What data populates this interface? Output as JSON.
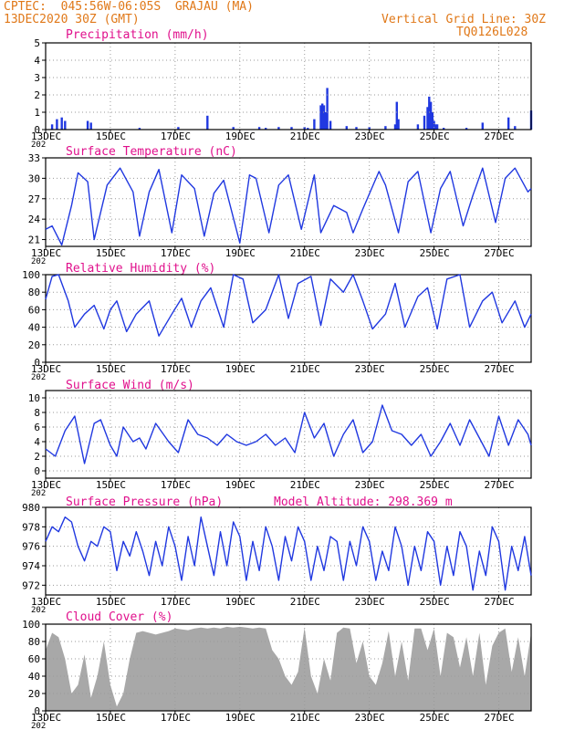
{
  "header": {
    "line1": "CPTEC:  045:56W-06:05S  GRAJAU (MA)",
    "line2": "13DEC2020 30Z (GMT)",
    "grid_note": "Vertical Grid Line: 30Z",
    "code": "TQ0126L028"
  },
  "colors": {
    "header": "#e07818",
    "title": "#e0108c",
    "series": "#2038e0",
    "cloud": "#a8a8a8"
  },
  "x_axis": {
    "labels": [
      "13DEC",
      "15DEC",
      "17DEC",
      "19DEC",
      "21DEC",
      "23DEC",
      "25DEC",
      "27DEC"
    ],
    "year_label": "202",
    "day_range": [
      13,
      28
    ]
  },
  "panels": {
    "precip": {
      "title": "Precipitation (mm/h)"
    },
    "temp": {
      "title": "Surface Temperature (nC)"
    },
    "rh": {
      "title": "Relative Humidity (%)"
    },
    "wind": {
      "title": "Surface Wind (m/s)"
    },
    "pres": {
      "title": "Surface Pressure (hPa)",
      "extra": "Model Altitude: 298.369 m"
    },
    "cloud": {
      "title": "Cloud Cover (%)"
    }
  },
  "chart_data": [
    {
      "id": "precip",
      "type": "bar",
      "title": "Precipitation (mm/h)",
      "ylim": [
        0,
        5
      ],
      "yticks": [
        0,
        1,
        2,
        3,
        4,
        5
      ],
      "grid": true,
      "x": [
        13.2,
        13.35,
        13.5,
        13.6,
        14.3,
        14.4,
        15.9,
        17.1,
        18.0,
        18.8,
        19.6,
        19.8,
        20.2,
        20.6,
        21.0,
        21.1,
        21.3,
        21.5,
        21.55,
        21.6,
        21.65,
        21.7,
        21.8,
        22.3,
        22.6,
        23.0,
        23.5,
        23.8,
        23.85,
        23.9,
        24.5,
        24.7,
        24.8,
        24.85,
        24.9,
        24.95,
        25.0,
        25.05,
        25.1,
        25.3,
        26.0,
        26.5,
        27.3,
        27.5,
        28.0
      ],
      "values": [
        0.3,
        0.6,
        0.7,
        0.5,
        0.5,
        0.4,
        0.1,
        0.15,
        0.8,
        0.15,
        0.15,
        0.1,
        0.15,
        0.15,
        0.15,
        0.1,
        0.6,
        1.4,
        1.5,
        1.4,
        1.0,
        2.4,
        0.5,
        0.2,
        0.15,
        0.15,
        0.2,
        0.3,
        1.6,
        0.6,
        0.3,
        0.8,
        1.3,
        1.9,
        1.6,
        1.0,
        0.5,
        0.3,
        0.3,
        0.1,
        0.1,
        0.4,
        0.7,
        0.2,
        1.1
      ]
    },
    {
      "id": "temp",
      "type": "line",
      "title": "Surface Temperature (nC)",
      "ylim": [
        20,
        33
      ],
      "yticks": [
        21,
        24,
        27,
        30,
        33
      ],
      "grid": true,
      "x": [
        13.0,
        13.2,
        13.5,
        13.8,
        14.0,
        14.3,
        14.5,
        14.9,
        15.3,
        15.7,
        15.9,
        16.2,
        16.5,
        16.9,
        17.2,
        17.6,
        17.9,
        18.2,
        18.5,
        19.0,
        19.3,
        19.5,
        19.9,
        20.2,
        20.5,
        20.9,
        21.3,
        21.5,
        21.9,
        22.3,
        22.5,
        22.8,
        23.3,
        23.5,
        23.9,
        24.2,
        24.5,
        24.9,
        25.2,
        25.5,
        25.9,
        26.2,
        26.5,
        26.9,
        27.2,
        27.5,
        27.9,
        28.0
      ],
      "values": [
        22.5,
        23.0,
        20.2,
        26.0,
        30.8,
        29.5,
        21.0,
        29.0,
        31.5,
        28.0,
        21.5,
        28.0,
        31.3,
        22.0,
        30.5,
        28.5,
        21.5,
        27.8,
        29.7,
        20.5,
        30.5,
        30.0,
        22.0,
        29.0,
        30.5,
        22.5,
        30.5,
        22.0,
        26.0,
        25.0,
        22.0,
        25.5,
        31.0,
        29.0,
        22.0,
        29.5,
        31.0,
        22.0,
        28.5,
        31.0,
        23.0,
        27.5,
        31.5,
        23.5,
        30.0,
        31.5,
        28.0,
        28.5
      ]
    },
    {
      "id": "rh",
      "type": "line",
      "title": "Relative Humidity (%)",
      "ylim": [
        0,
        100
      ],
      "yticks": [
        0,
        20,
        40,
        60,
        80,
        100
      ],
      "grid": true,
      "x": [
        13.0,
        13.2,
        13.4,
        13.7,
        13.9,
        14.2,
        14.5,
        14.8,
        15.0,
        15.2,
        15.5,
        15.8,
        16.2,
        16.5,
        16.9,
        17.2,
        17.5,
        17.8,
        18.1,
        18.5,
        18.8,
        19.1,
        19.4,
        19.8,
        20.2,
        20.5,
        20.8,
        21.2,
        21.5,
        21.8,
        22.2,
        22.5,
        22.8,
        23.1,
        23.5,
        23.8,
        24.1,
        24.5,
        24.8,
        25.1,
        25.4,
        25.8,
        26.1,
        26.5,
        26.8,
        27.1,
        27.5,
        27.8,
        28.0
      ],
      "values": [
        72,
        98,
        100,
        70,
        40,
        55,
        65,
        38,
        60,
        70,
        35,
        55,
        70,
        30,
        55,
        73,
        40,
        70,
        85,
        40,
        100,
        95,
        45,
        60,
        100,
        50,
        90,
        98,
        42,
        95,
        80,
        100,
        70,
        38,
        55,
        90,
        40,
        75,
        85,
        38,
        95,
        100,
        40,
        70,
        80,
        45,
        70,
        40,
        55
      ]
    },
    {
      "id": "wind",
      "type": "line",
      "title": "Surface Wind (m/s)",
      "ylim": [
        -1,
        11
      ],
      "yticks": [
        0,
        2,
        4,
        6,
        8,
        10
      ],
      "grid": true,
      "x": [
        13.0,
        13.3,
        13.6,
        13.9,
        14.2,
        14.5,
        14.7,
        15.0,
        15.2,
        15.4,
        15.7,
        15.9,
        16.1,
        16.4,
        16.8,
        17.1,
        17.4,
        17.7,
        18.0,
        18.3,
        18.6,
        18.9,
        19.2,
        19.5,
        19.8,
        20.1,
        20.4,
        20.7,
        21.0,
        21.3,
        21.6,
        21.9,
        22.2,
        22.5,
        22.8,
        23.1,
        23.4,
        23.7,
        24.0,
        24.3,
        24.6,
        24.9,
        25.2,
        25.5,
        25.8,
        26.1,
        26.4,
        26.7,
        27.0,
        27.3,
        27.6,
        27.9,
        28.0
      ],
      "values": [
        3.0,
        2.0,
        5.5,
        7.5,
        1.0,
        6.5,
        7.0,
        3.5,
        2.0,
        6.0,
        4.0,
        4.5,
        3.0,
        6.5,
        4.0,
        2.5,
        7.0,
        5.0,
        4.5,
        3.5,
        5.0,
        4.0,
        3.5,
        4.0,
        5.0,
        3.5,
        4.5,
        2.5,
        8.0,
        4.5,
        6.5,
        2.0,
        5.0,
        7.0,
        2.5,
        4.0,
        9.0,
        5.5,
        5.0,
        3.5,
        5.0,
        2.0,
        4.0,
        6.5,
        3.5,
        7.0,
        4.5,
        2.0,
        7.5,
        3.5,
        7.0,
        5.0,
        3.5
      ]
    },
    {
      "id": "pres",
      "type": "line",
      "title": "Surface Pressure (hPa)",
      "ylim": [
        971,
        980
      ],
      "yticks": [
        972,
        974,
        976,
        978,
        980
      ],
      "grid": true,
      "x": [
        13.0,
        13.2,
        13.4,
        13.6,
        13.8,
        14.0,
        14.2,
        14.4,
        14.6,
        14.8,
        15.0,
        15.2,
        15.4,
        15.6,
        15.8,
        16.0,
        16.2,
        16.4,
        16.6,
        16.8,
        17.0,
        17.2,
        17.4,
        17.6,
        17.8,
        18.0,
        18.2,
        18.4,
        18.6,
        18.8,
        19.0,
        19.2,
        19.4,
        19.6,
        19.8,
        20.0,
        20.2,
        20.4,
        20.6,
        20.8,
        21.0,
        21.2,
        21.4,
        21.6,
        21.8,
        22.0,
        22.2,
        22.4,
        22.6,
        22.8,
        23.0,
        23.2,
        23.4,
        23.6,
        23.8,
        24.0,
        24.2,
        24.4,
        24.6,
        24.8,
        25.0,
        25.2,
        25.4,
        25.6,
        25.8,
        26.0,
        26.2,
        26.4,
        26.6,
        26.8,
        27.0,
        27.2,
        27.4,
        27.6,
        27.8,
        28.0
      ],
      "values": [
        976.5,
        978.0,
        977.5,
        979.0,
        978.5,
        976.0,
        974.5,
        976.5,
        976.0,
        978.0,
        977.5,
        973.5,
        976.5,
        975.0,
        977.5,
        975.5,
        973.0,
        976.5,
        974.0,
        978.0,
        976.0,
        972.5,
        977.0,
        974.0,
        979.0,
        976.0,
        973.0,
        977.5,
        974.0,
        978.5,
        977.0,
        972.5,
        976.5,
        973.5,
        978.0,
        976.0,
        972.5,
        977.0,
        974.5,
        978.0,
        976.5,
        972.5,
        976.0,
        973.5,
        977.0,
        976.5,
        972.5,
        976.5,
        974.0,
        978.0,
        976.5,
        972.5,
        975.5,
        973.5,
        978.0,
        976.0,
        972.0,
        976.0,
        973.5,
        977.5,
        976.5,
        972.0,
        976.0,
        973.0,
        977.5,
        976.0,
        971.5,
        975.5,
        973.0,
        978.0,
        976.5,
        971.5,
        976.0,
        973.5,
        977.0,
        973.0
      ]
    },
    {
      "id": "cloud",
      "type": "area",
      "title": "Cloud Cover (%)",
      "ylim": [
        0,
        100
      ],
      "yticks": [
        0,
        20,
        40,
        60,
        80,
        100
      ],
      "grid": true,
      "x": [
        13.0,
        13.2,
        13.4,
        13.6,
        13.8,
        14.0,
        14.2,
        14.4,
        14.6,
        14.8,
        15.0,
        15.2,
        15.4,
        15.6,
        15.8,
        16.0,
        16.2,
        16.4,
        16.6,
        16.8,
        17.0,
        17.2,
        17.4,
        17.6,
        17.8,
        18.0,
        18.2,
        18.4,
        18.6,
        18.8,
        19.0,
        19.2,
        19.4,
        19.6,
        19.8,
        20.0,
        20.2,
        20.4,
        20.6,
        20.8,
        21.0,
        21.2,
        21.4,
        21.6,
        21.8,
        22.0,
        22.2,
        22.4,
        22.6,
        22.8,
        23.0,
        23.2,
        23.4,
        23.6,
        23.8,
        24.0,
        24.2,
        24.4,
        24.6,
        24.8,
        25.0,
        25.2,
        25.4,
        25.6,
        25.8,
        26.0,
        26.2,
        26.4,
        26.6,
        26.8,
        27.0,
        27.2,
        27.4,
        27.6,
        27.8,
        28.0
      ],
      "values": [
        70,
        90,
        85,
        60,
        20,
        30,
        65,
        15,
        40,
        80,
        30,
        5,
        20,
        60,
        90,
        92,
        90,
        88,
        90,
        92,
        95,
        94,
        93,
        95,
        96,
        95,
        96,
        95,
        97,
        96,
        97,
        96,
        95,
        96,
        95,
        70,
        60,
        40,
        30,
        45,
        96,
        40,
        20,
        60,
        35,
        90,
        96,
        95,
        55,
        80,
        40,
        30,
        55,
        92,
        40,
        80,
        35,
        95,
        95,
        70,
        95,
        40,
        90,
        85,
        50,
        85,
        40,
        90,
        30,
        75,
        90,
        95,
        45,
        85,
        40,
        90
      ]
    }
  ]
}
